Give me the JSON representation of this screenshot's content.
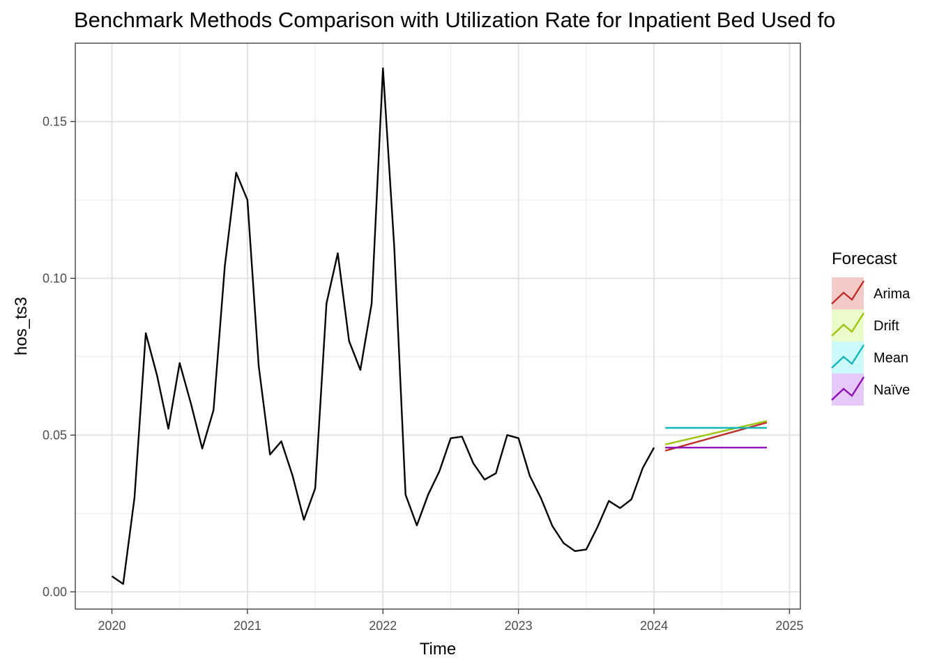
{
  "chart_data": {
    "type": "line",
    "title": "Benchmark Methods Comparison with Utilization Rate for Inpatient Bed Used fo",
    "xlabel": "Time",
    "ylabel": "hos_ts3",
    "xlim": [
      2019.73,
      2025.08
    ],
    "ylim": [
      -0.0055,
      0.175
    ],
    "xticks": [
      2020,
      2021,
      2022,
      2023,
      2024,
      2025
    ],
    "xtick_labels": [
      "2020",
      "2021",
      "2022",
      "2023",
      "2024",
      "2025"
    ],
    "yticks": [
      0.0,
      0.05,
      0.1,
      0.15
    ],
    "ytick_labels": [
      "0.00",
      "0.05",
      "0.10",
      "0.15"
    ],
    "grid": true,
    "legend": {
      "title": "Forecast",
      "position": "right"
    },
    "observed": {
      "color": "#000000",
      "x": [
        2020.0,
        2020.0833,
        2020.1667,
        2020.25,
        2020.3333,
        2020.4167,
        2020.5,
        2020.5833,
        2020.6667,
        2020.75,
        2020.8333,
        2020.9167,
        2021.0,
        2021.0833,
        2021.1667,
        2021.25,
        2021.3333,
        2021.4167,
        2021.5,
        2021.5833,
        2021.6667,
        2021.75,
        2021.8333,
        2021.9167,
        2022.0,
        2022.0833,
        2022.1667,
        2022.25,
        2022.3333,
        2022.4167,
        2022.5,
        2022.5833,
        2022.6667,
        2022.75,
        2022.8333,
        2022.9167,
        2023.0,
        2023.0833,
        2023.1667,
        2023.25,
        2023.3333,
        2023.4167,
        2023.5,
        2023.5833,
        2023.6667,
        2023.75,
        2023.8333,
        2023.9167,
        2024.0
      ],
      "y": [
        0.005,
        0.0025,
        0.03,
        0.0825,
        0.069,
        0.052,
        0.073,
        0.06,
        0.0457,
        0.058,
        0.104,
        0.1337,
        0.125,
        0.072,
        0.0438,
        0.048,
        0.037,
        0.023,
        0.033,
        0.092,
        0.108,
        0.08,
        0.0708,
        0.092,
        0.167,
        0.11,
        0.031,
        0.0212,
        0.031,
        0.0385,
        0.049,
        0.0495,
        0.041,
        0.0358,
        0.0378,
        0.05,
        0.049,
        0.037,
        0.0298,
        0.021,
        0.0155,
        0.013,
        0.0135,
        0.0207,
        0.029,
        0.0267,
        0.0295,
        0.0395,
        0.046
      ]
    },
    "series": [
      {
        "name": "Arima",
        "color": "#bd2f2a",
        "fill": "#f4cac8",
        "x": [
          2024.0833,
          2024.8333
        ],
        "y": [
          0.045,
          0.054
        ]
      },
      {
        "name": "Drift",
        "color": "#9ec40e",
        "fill": "#ebfccb",
        "x": [
          2024.0833,
          2024.8333
        ],
        "y": [
          0.047,
          0.0545
        ]
      },
      {
        "name": "Mean",
        "color": "#13b5b8",
        "fill": "#ccfafa",
        "x": [
          2024.0833,
          2024.8333
        ],
        "y": [
          0.0523,
          0.0523
        ]
      },
      {
        "name": "Naïve",
        "color": "#8c0db4",
        "fill": "#e5c9fa",
        "x": [
          2024.0833,
          2024.8333
        ],
        "y": [
          0.046,
          0.046
        ]
      }
    ]
  }
}
